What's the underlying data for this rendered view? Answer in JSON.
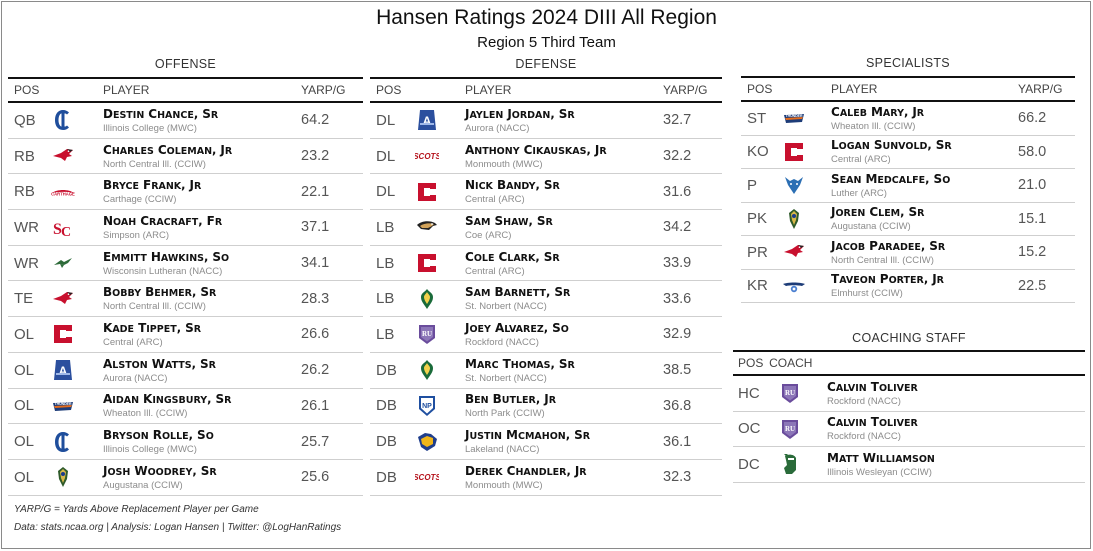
{
  "title": "Hansen Ratings 2024 DIII All Region",
  "subtitle": "Region 5 Third Team",
  "colors": {
    "header_rule": "#111111",
    "row_rule": "#cfcfcf",
    "school_text": "#8c8c8c"
  },
  "offense": {
    "title": "OFFENSE",
    "headers": {
      "pos": "POS",
      "player": "PLAYER",
      "stat": "YARP/G"
    },
    "rows": [
      {
        "pos": "QB",
        "logo": "illinois-college-logo",
        "first": "Destin",
        "last": "Chance",
        "year": "Sr",
        "school": "Illinois College (MWC)",
        "yarp": "64.2"
      },
      {
        "pos": "RB",
        "logo": "north-central-logo",
        "first": "Charles",
        "last": "Coleman",
        "year": "Jr",
        "school": "North Central Ill. (CCIW)",
        "yarp": "23.2"
      },
      {
        "pos": "RB",
        "logo": "carthage-logo",
        "first": "Bryce",
        "last": "Frank",
        "year": "Jr",
        "school": "Carthage (CCIW)",
        "yarp": "22.1"
      },
      {
        "pos": "WR",
        "logo": "simpson-logo",
        "first": "Noah",
        "last": "Cracraft",
        "year": "Fr",
        "school": "Simpson (ARC)",
        "yarp": "37.1"
      },
      {
        "pos": "WR",
        "logo": "wisconsin-lutheran-logo",
        "first": "Emmitt",
        "last": "Hawkins",
        "year": "So",
        "school": "Wisconsin Lutheran (NACC)",
        "yarp": "34.1"
      },
      {
        "pos": "TE",
        "logo": "north-central-logo",
        "first": "Bobby",
        "last": "Behmer",
        "year": "Sr",
        "school": "North Central Ill. (CCIW)",
        "yarp": "28.3"
      },
      {
        "pos": "OL",
        "logo": "central-logo",
        "first": "Kade",
        "last": "Tippet",
        "year": "Sr",
        "school": "Central (ARC)",
        "yarp": "26.6"
      },
      {
        "pos": "OL",
        "logo": "aurora-logo",
        "first": "Alston",
        "last": "Watts",
        "year": "Sr",
        "school": "Aurora (NACC)",
        "yarp": "26.2"
      },
      {
        "pos": "OL",
        "logo": "wheaton-logo",
        "first": "Aidan",
        "last": "Kingsbury",
        "year": "Sr",
        "school": "Wheaton Ill. (CCIW)",
        "yarp": "26.1"
      },
      {
        "pos": "OL",
        "logo": "illinois-college-logo",
        "first": "Bryson",
        "last": "Rolle",
        "year": "So",
        "school": "Illinois College (MWC)",
        "yarp": "25.7"
      },
      {
        "pos": "OL",
        "logo": "augustana-logo",
        "first": "Josh",
        "last": "Woodrey",
        "year": "Sr",
        "school": "Augustana (CCIW)",
        "yarp": "25.6"
      }
    ]
  },
  "defense": {
    "title": "DEFENSE",
    "headers": {
      "pos": "POS",
      "player": "PLAYER",
      "stat": "YARP/G"
    },
    "rows": [
      {
        "pos": "DL",
        "logo": "aurora-logo",
        "first": "Jaylen",
        "last": "Jordan",
        "year": "Sr",
        "school": "Aurora (NACC)",
        "yarp": "32.7"
      },
      {
        "pos": "DL",
        "logo": "monmouth-logo",
        "first": "Anthony",
        "last": "Cikauskas",
        "year": "Jr",
        "school": "Monmouth (MWC)",
        "yarp": "32.2"
      },
      {
        "pos": "DL",
        "logo": "central-logo",
        "first": "Nick",
        "last": "Bandy",
        "year": "Sr",
        "school": "Central (ARC)",
        "yarp": "31.6"
      },
      {
        "pos": "LB",
        "logo": "coe-logo",
        "first": "Sam",
        "last": "Shaw",
        "year": "Sr",
        "school": "Coe (ARC)",
        "yarp": "34.2"
      },
      {
        "pos": "LB",
        "logo": "central-logo",
        "first": "Cole",
        "last": "Clark",
        "year": "Sr",
        "school": "Central (ARC)",
        "yarp": "33.9"
      },
      {
        "pos": "LB",
        "logo": "st-norbert-logo",
        "first": "Sam",
        "last": "Barnett",
        "year": "Sr",
        "school": "St. Norbert (NACC)",
        "yarp": "33.6"
      },
      {
        "pos": "LB",
        "logo": "rockford-logo",
        "first": "Joey",
        "last": "Alvarez",
        "year": "So",
        "school": "Rockford (NACC)",
        "yarp": "32.9"
      },
      {
        "pos": "DB",
        "logo": "st-norbert-logo",
        "first": "Marc",
        "last": "Thomas",
        "year": "Sr",
        "school": "St. Norbert (NACC)",
        "yarp": "38.5"
      },
      {
        "pos": "DB",
        "logo": "north-park-logo",
        "first": "Ben",
        "last": "Butler",
        "year": "Jr",
        "school": "North Park (CCIW)",
        "yarp": "36.8"
      },
      {
        "pos": "DB",
        "logo": "lakeland-logo",
        "first": "Justin",
        "last": "McMahon",
        "year": "Sr",
        "school": "Lakeland (NACC)",
        "yarp": "36.1"
      },
      {
        "pos": "DB",
        "logo": "monmouth-logo",
        "first": "Derek",
        "last": "Chandler",
        "year": "Jr",
        "school": "Monmouth (MWC)",
        "yarp": "32.3"
      }
    ]
  },
  "specialists": {
    "title": "SPECIALISTS",
    "headers": {
      "pos": "POS",
      "player": "PLAYER",
      "stat": "YARP/G"
    },
    "rows": [
      {
        "pos": "ST",
        "logo": "wheaton-logo",
        "first": "Caleb",
        "last": "Mary",
        "year": "Jr",
        "school": "Wheaton Ill. (CCIW)",
        "yarp": "66.2"
      },
      {
        "pos": "KO",
        "logo": "central-logo",
        "first": "Logan",
        "last": "Sunvold",
        "year": "Sr",
        "school": "Central (ARC)",
        "yarp": "58.0"
      },
      {
        "pos": "P",
        "logo": "luther-logo",
        "first": "Sean",
        "last": "Medcalfe",
        "year": "So",
        "school": "Luther (ARC)",
        "yarp": "21.0"
      },
      {
        "pos": "PK",
        "logo": "augustana-logo",
        "first": "Joren",
        "last": "Clem",
        "year": "Sr",
        "school": "Augustana (CCIW)",
        "yarp": "15.1"
      },
      {
        "pos": "PR",
        "logo": "north-central-logo",
        "first": "Jacob",
        "last": "Paradee",
        "year": "Sr",
        "school": "North Central Ill. (CCIW)",
        "yarp": "15.2"
      },
      {
        "pos": "KR",
        "logo": "elmhurst-logo",
        "first": "Taveon",
        "last": "Porter",
        "year": "Jr",
        "school": "Elmhurst (CCIW)",
        "yarp": "22.5"
      }
    ]
  },
  "coaching": {
    "title": "COACHING STAFF",
    "headers": {
      "pos": "POS",
      "coach": "COACH"
    },
    "rows": [
      {
        "pos": "HC",
        "logo": "rockford-logo",
        "first": "Calvin",
        "last": "Toliver",
        "school": "Rockford (NACC)"
      },
      {
        "pos": "OC",
        "logo": "rockford-logo",
        "first": "Calvin",
        "last": "Toliver",
        "school": "Rockford (NACC)"
      },
      {
        "pos": "DC",
        "logo": "illinois-wesleyan-logo",
        "first": "Matt",
        "last": "Williamson",
        "school": "Illinois Wesleyan (CCIW)"
      }
    ]
  },
  "footnote": "YARP/G = Yards Above Replacement Player per Game",
  "credits": "Data: stats.ncaa.org | Analysis: Logan Hansen | Twitter: @LogHanRatings"
}
